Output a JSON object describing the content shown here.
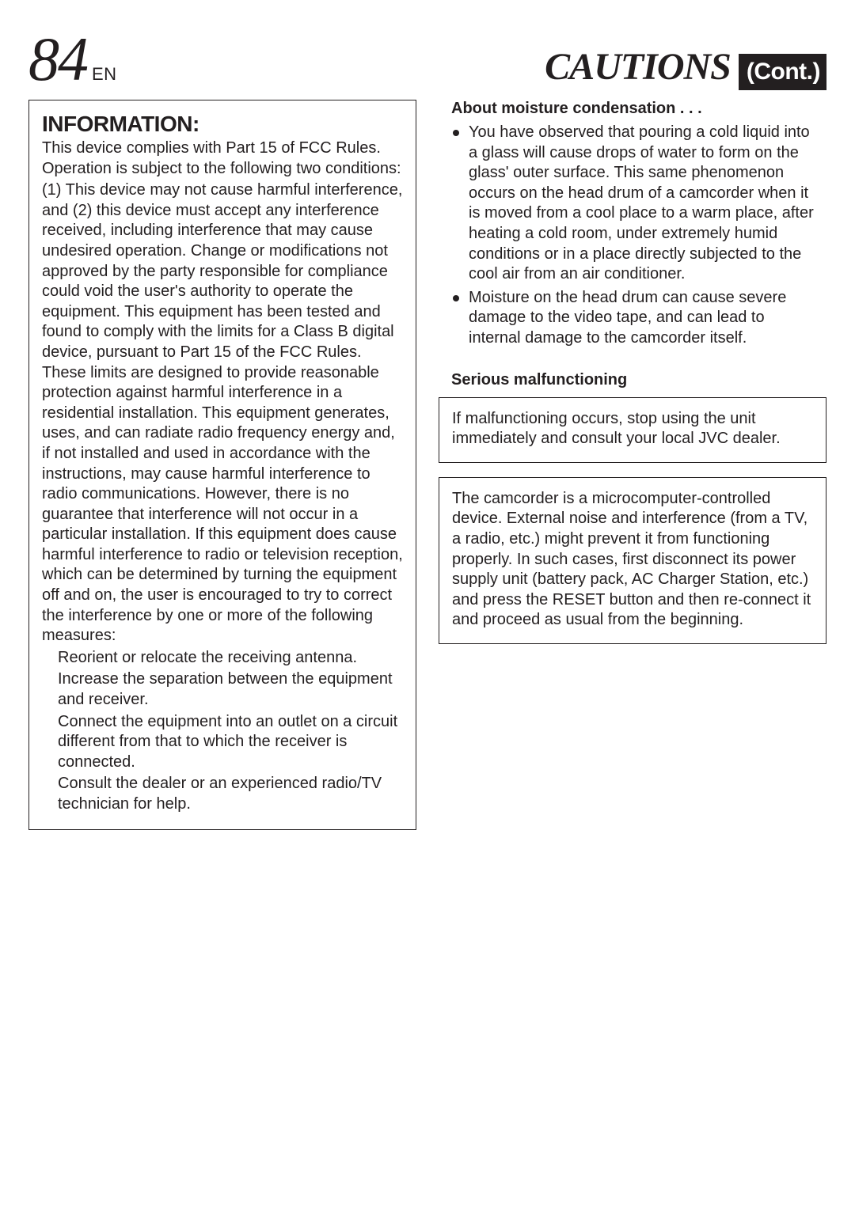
{
  "header": {
    "page_number": "84",
    "lang": "EN",
    "title_main": "CAUTIONS",
    "title_cont": "(Cont.)"
  },
  "left": {
    "info_heading": "INFORMATION:",
    "p1": "This device complies with Part 15 of FCC Rules. Operation is subject to the following two conditions:",
    "p2": "(1) This device may not cause harmful interference, and (2) this device must accept any interference received, including interference that may cause undesired operation. Change or modifications not approved by the party responsible for compliance could void the user's authority to operate the equipment. This equipment has been tested and found to comply with the limits for a Class B digital device, pursuant to Part 15 of the FCC Rules. These limits are designed to provide reasonable protection against harmful interference in a residential installation. This equipment generates, uses, and can radiate radio frequency energy and, if not installed and used in accordance with the instructions, may cause harmful interference to radio communications. However, there is no guarantee that interference will not occur in a particular installation.  If this equipment does cause harmful interference to radio or television reception, which can be determined by turning the equipment off and on, the user is encouraged to try to correct the interference by one or more of the following measures:",
    "m1": "Reorient or relocate the receiving antenna.",
    "m2": "Increase the separation between the equipment and receiver.",
    "m3": "Connect the equipment into an outlet on a circuit different from that to which the receiver is connected.",
    "m4": "Consult the dealer or an experienced radio/TV technician for help."
  },
  "right": {
    "moisture_heading": "About moisture condensation . . .",
    "moisture_b1": "You have observed that pouring a cold liquid into a glass will cause drops of water to form on the glass' outer surface. This same phenomenon occurs on the head drum of a camcorder when it is moved from a cool place to a warm place, after heating a cold room, under extremely humid conditions or in a place directly subjected to the cool air from an air conditioner.",
    "moisture_b2": "Moisture on the head drum can cause severe damage to the video tape, and can lead to internal damage to the camcorder itself.",
    "serious_heading": "Serious malfunctioning",
    "serious_box": "If malfunctioning occurs, stop using the unit immediately and consult your local JVC dealer.",
    "micro_box": "The camcorder is a microcomputer-controlled device. External noise and interference (from a TV, a radio, etc.) might prevent it from functioning properly. In such cases, first disconnect its power supply unit (battery pack, AC Charger Station, etc.) and press the RESET button and then re-connect it and proceed as usual from the beginning."
  },
  "style": {
    "text_color": "#231f20",
    "bg_color": "#ffffff"
  }
}
